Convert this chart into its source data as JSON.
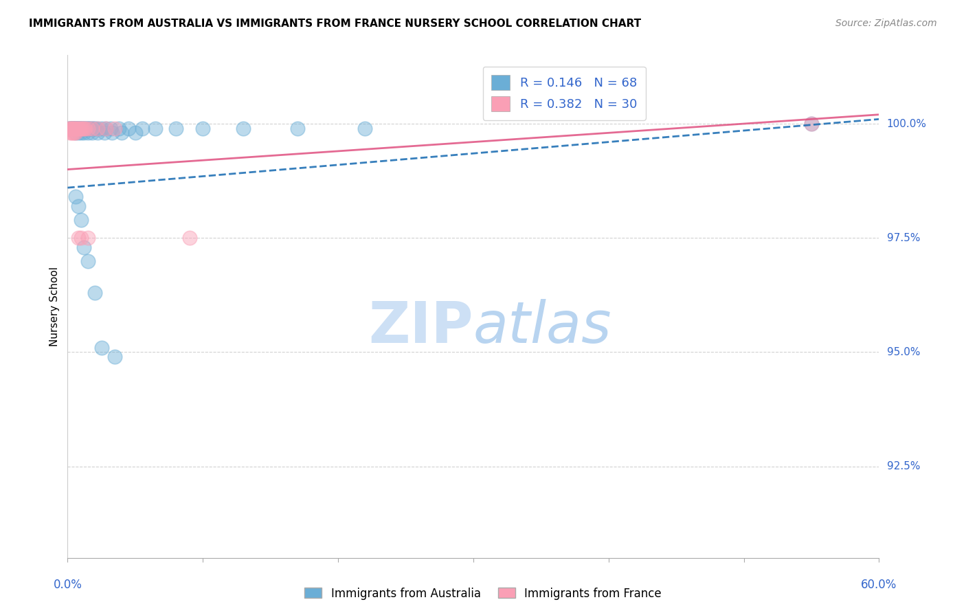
{
  "title": "IMMIGRANTS FROM AUSTRALIA VS IMMIGRANTS FROM FRANCE NURSERY SCHOOL CORRELATION CHART",
  "source": "Source: ZipAtlas.com",
  "ylabel": "Nursery School",
  "ytick_labels": [
    "100.0%",
    "97.5%",
    "95.0%",
    "92.5%"
  ],
  "ytick_values": [
    1.0,
    0.975,
    0.95,
    0.925
  ],
  "xlim": [
    0.0,
    0.6
  ],
  "ylim": [
    0.905,
    1.015
  ],
  "australia_color": "#6baed6",
  "france_color": "#fa9fb5",
  "australia_line_color": "#2171b5",
  "france_line_color": "#e05080",
  "watermark_zip_color": "#cde0f5",
  "watermark_atlas_color": "#b8d4f0",
  "australia_x": [
    0.001,
    0.002,
    0.002,
    0.003,
    0.003,
    0.003,
    0.004,
    0.004,
    0.004,
    0.005,
    0.005,
    0.005,
    0.006,
    0.006,
    0.006,
    0.007,
    0.007,
    0.008,
    0.008,
    0.009,
    0.009,
    0.01,
    0.01,
    0.011,
    0.012,
    0.012,
    0.013,
    0.014,
    0.015,
    0.015,
    0.016,
    0.017,
    0.018,
    0.019,
    0.02,
    0.022,
    0.025,
    0.028,
    0.032,
    0.038,
    0.045,
    0.055,
    0.065,
    0.08,
    0.1,
    0.13,
    0.17,
    0.22,
    0.006,
    0.008,
    0.01,
    0.012,
    0.015,
    0.018,
    0.022,
    0.027,
    0.033,
    0.04,
    0.05,
    0.006,
    0.008,
    0.01,
    0.012,
    0.015,
    0.02,
    0.025,
    0.035,
    0.55
  ],
  "australia_y": [
    0.999,
    0.999,
    0.999,
    0.999,
    0.999,
    0.999,
    0.999,
    0.999,
    0.999,
    0.999,
    0.999,
    0.999,
    0.999,
    0.999,
    0.999,
    0.999,
    0.999,
    0.999,
    0.999,
    0.999,
    0.999,
    0.999,
    0.999,
    0.999,
    0.999,
    0.999,
    0.999,
    0.999,
    0.999,
    0.999,
    0.999,
    0.999,
    0.999,
    0.999,
    0.999,
    0.999,
    0.999,
    0.999,
    0.999,
    0.999,
    0.999,
    0.999,
    0.999,
    0.999,
    0.999,
    0.999,
    0.999,
    0.999,
    0.998,
    0.998,
    0.998,
    0.998,
    0.998,
    0.998,
    0.998,
    0.998,
    0.998,
    0.998,
    0.998,
    0.984,
    0.982,
    0.979,
    0.973,
    0.97,
    0.963,
    0.951,
    0.949,
    1.0
  ],
  "france_x": [
    0.001,
    0.002,
    0.003,
    0.003,
    0.004,
    0.005,
    0.005,
    0.006,
    0.007,
    0.008,
    0.009,
    0.01,
    0.011,
    0.012,
    0.013,
    0.015,
    0.018,
    0.022,
    0.028,
    0.035,
    0.002,
    0.003,
    0.004,
    0.005,
    0.006,
    0.008,
    0.01,
    0.015,
    0.09,
    0.55
  ],
  "france_y": [
    0.999,
    0.999,
    0.999,
    0.999,
    0.999,
    0.999,
    0.999,
    0.999,
    0.999,
    0.999,
    0.999,
    0.999,
    0.999,
    0.999,
    0.999,
    0.999,
    0.999,
    0.999,
    0.999,
    0.999,
    0.998,
    0.998,
    0.998,
    0.998,
    0.998,
    0.975,
    0.975,
    0.975,
    0.975,
    1.0
  ],
  "aus_line_x0": 0.0,
  "aus_line_x1": 0.6,
  "aus_line_y0": 0.986,
  "aus_line_y1": 1.001,
  "fra_line_x0": 0.0,
  "fra_line_x1": 0.6,
  "fra_line_y0": 0.99,
  "fra_line_y1": 1.002
}
